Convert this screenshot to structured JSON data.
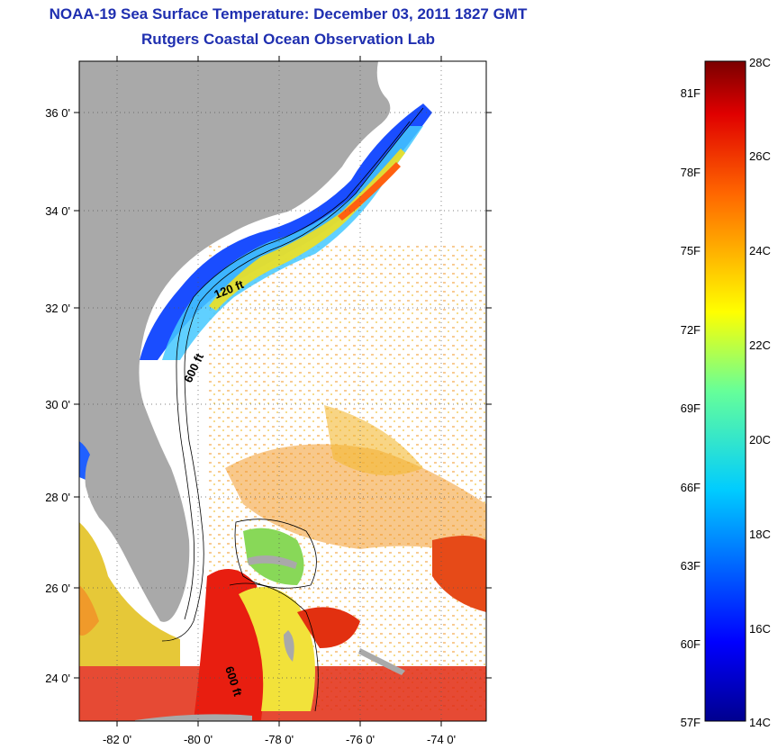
{
  "header": {
    "title": "NOAA-19 Sea Surface Temperature:  December 03, 2011 1827 GMT",
    "subtitle": "Rutgers Coastal Ocean Observation Lab"
  },
  "map": {
    "lat_labels": [
      "36 0'",
      "34 0'",
      "32 0'",
      "30 0'",
      "28 0'",
      "26 0'",
      "24 0'"
    ],
    "lon_labels": [
      "-82 0'",
      "-80 0'",
      "-78 0'",
      "-76 0'",
      "-74 0'"
    ],
    "contour_labels": [
      "120 ft",
      "600 ft",
      "600 ft"
    ],
    "land_color": "#a9a9a9"
  },
  "colorbar": {
    "celsius_labels": [
      "28C",
      "26C",
      "24C",
      "22C",
      "20C",
      "18C",
      "16C",
      "14C"
    ],
    "fahrenheit_labels": [
      "81F",
      "78F",
      "75F",
      "72F",
      "69F",
      "66F",
      "63F",
      "60F",
      "57F"
    ],
    "top_color": "#7a0000",
    "bottom_color": "#00008f"
  }
}
